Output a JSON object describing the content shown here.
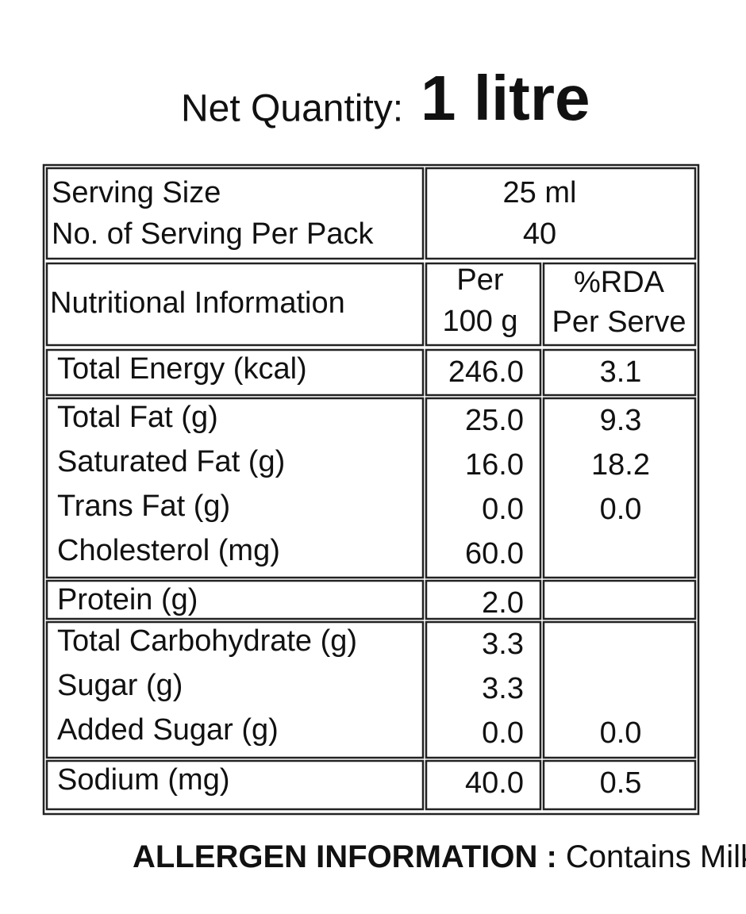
{
  "header": {
    "label": "Net Quantity:",
    "value": "1 litre"
  },
  "serving": [
    {
      "label": "Serving Size",
      "value": "25 ml"
    },
    {
      "label": "No. of Serving Per Pack",
      "value": "40"
    }
  ],
  "columns": {
    "name": "Nutritional Information",
    "per100": [
      "Per",
      "100 g"
    ],
    "rda": [
      "%RDA",
      "Per Serve"
    ]
  },
  "groups": [
    [
      {
        "name": "Total Energy (kcal)",
        "per100": "246.0",
        "rda": "3.1"
      }
    ],
    [
      {
        "name": "Total Fat (g)",
        "per100": "25.0",
        "rda": "9.3"
      },
      {
        "name": "Saturated Fat (g)",
        "per100": "16.0",
        "rda": "18.2"
      },
      {
        "name": "Trans Fat (g)",
        "per100": "0.0",
        "rda": "0.0"
      },
      {
        "name": "Cholesterol (mg)",
        "per100": "60.0",
        "rda": null
      }
    ],
    [
      {
        "name": "Protein (g)",
        "per100": "2.0",
        "rda": null
      }
    ],
    [
      {
        "name": "Total Carbohydrate (g)",
        "per100": "3.3",
        "rda": null
      },
      {
        "name": "Sugar (g)",
        "per100": "3.3",
        "rda": null
      },
      {
        "name": "Added Sugar (g)",
        "per100": "0.0",
        "rda": "0.0"
      }
    ],
    [
      {
        "name": "Sodium (mg)",
        "per100": "40.0",
        "rda": "0.5"
      }
    ]
  ],
  "allergen": {
    "label": "ALLERGEN INFORMATION :",
    "value": "Contains Milk"
  }
}
